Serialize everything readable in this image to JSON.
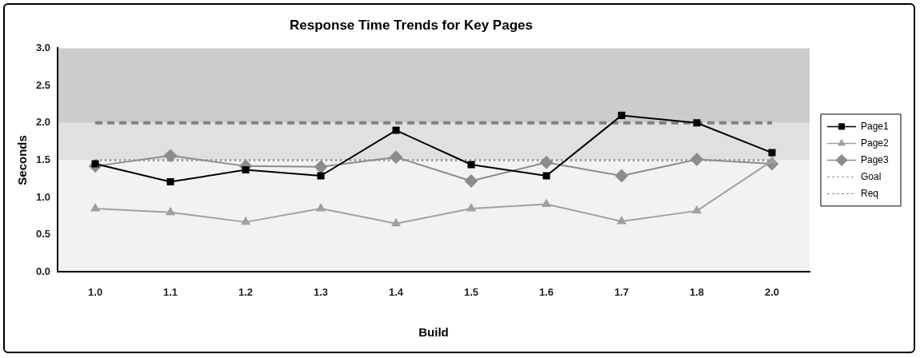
{
  "chart_data": {
    "type": "line",
    "title": "Response Time Trends for Key Pages",
    "xlabel": "Build",
    "ylabel": "Seconds",
    "categories": [
      "1.0",
      "1.1",
      "1.2",
      "1.3",
      "1.4",
      "1.5",
      "1.6",
      "1.7",
      "1.8",
      "2.0"
    ],
    "series": [
      {
        "name": "Page1",
        "color": "#000000",
        "marker": "square",
        "values": [
          1.45,
          1.21,
          1.37,
          1.29,
          1.9,
          1.44,
          1.29,
          2.1,
          2.0,
          1.6
        ]
      },
      {
        "name": "Page2",
        "color": "#a0a0a0",
        "marker": "triangle",
        "values": [
          0.85,
          0.8,
          0.67,
          0.85,
          0.65,
          0.85,
          0.91,
          0.68,
          0.82,
          1.49
        ]
      },
      {
        "name": "Page3",
        "color": "#8c8c8c",
        "marker": "diamond",
        "values": [
          1.42,
          1.56,
          1.42,
          1.41,
          1.54,
          1.22,
          1.47,
          1.29,
          1.51,
          1.45
        ]
      },
      {
        "name": "Goal",
        "color": "#909090",
        "marker": "none",
        "line_style": "dotted",
        "values": [
          1.5,
          1.5,
          1.5,
          1.5,
          1.5,
          1.5,
          1.5,
          1.5,
          1.5,
          1.5
        ]
      },
      {
        "name": "Req",
        "color": "#808080",
        "marker": "none",
        "line_style": "dashed",
        "values": [
          2.0,
          2.0,
          2.0,
          2.0,
          2.0,
          2.0,
          2.0,
          2.0,
          2.0,
          2.0
        ]
      }
    ],
    "bands": [
      {
        "axis": "y",
        "from": 0,
        "to": 1.5,
        "color": "#f2f2f2"
      },
      {
        "axis": "y",
        "from": 1.5,
        "to": 2.0,
        "color": "#e0e0e0"
      },
      {
        "axis": "y",
        "from": 2.0,
        "to": 3.0,
        "color": "#cccccc"
      }
    ],
    "ylim": [
      0,
      3
    ],
    "yticks": [
      {
        "value": 0,
        "label": "0.0"
      },
      {
        "value": 0.5,
        "label": "0.5"
      },
      {
        "value": 1,
        "label": "1.0"
      },
      {
        "value": 1.5,
        "label": "1.5"
      },
      {
        "value": 2,
        "label": "2.0"
      },
      {
        "value": 2.5,
        "label": "2.5"
      },
      {
        "value": 3,
        "label": "3.0"
      }
    ],
    "legend": "right"
  }
}
